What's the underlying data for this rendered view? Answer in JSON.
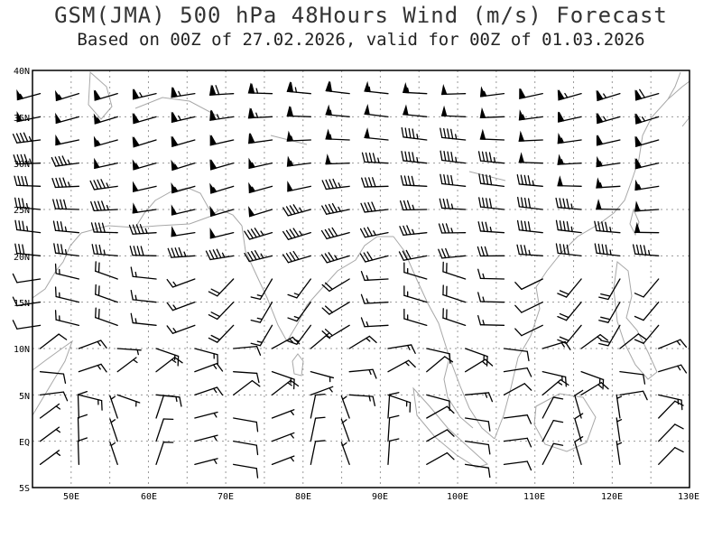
{
  "title": "GSM(JMA) 500 hPa 48Hours Wind (m/s) Forecast",
  "subtitle": "Based on 00Z of 27.02.2026, valid for 00Z of 01.03.2026",
  "map": {
    "region": {
      "lon_range": [
        45,
        130
      ],
      "lat_range": [
        -5,
        40
      ]
    },
    "lat_labels": [
      "40N",
      "35N",
      "30N",
      "25N",
      "20N",
      "15N",
      "10N",
      "5N",
      "EQ",
      "5S"
    ],
    "lon_labels": [
      "50E",
      "60E",
      "70E",
      "80E",
      "90E",
      "100E",
      "110E",
      "120E",
      "130E"
    ],
    "grid": true,
    "colors": {
      "coastline": "#a8a8a8",
      "barb": "#000000",
      "grid": "#9a9a9a",
      "frame": "#000000"
    }
  }
}
